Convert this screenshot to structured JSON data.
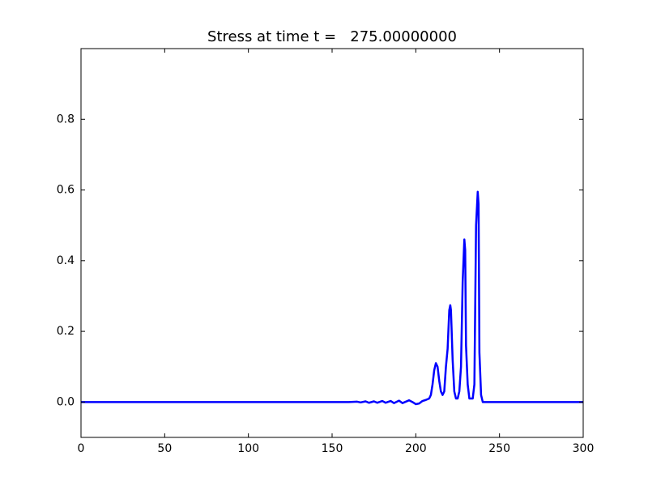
{
  "chart_data": {
    "type": "line",
    "title": "Stress at time t =   275.00000000",
    "x": [
      0,
      160,
      165,
      167,
      170,
      172,
      175,
      177,
      180,
      182,
      185,
      187,
      190,
      192,
      196,
      198,
      200,
      202,
      204,
      206,
      208,
      209,
      210,
      211,
      212,
      213,
      214,
      215,
      216,
      217,
      218,
      219,
      220,
      220.6,
      221,
      222,
      223,
      224,
      225,
      226,
      227,
      228,
      229,
      229.5,
      230,
      231,
      232,
      233,
      234,
      235,
      236,
      237,
      237.5,
      238,
      239,
      240,
      245,
      300
    ],
    "series": [
      {
        "color": "#0000ff",
        "values": [
          0,
          0,
          0.001,
          -0.001,
          0.002,
          -0.002,
          0.002,
          -0.002,
          0.003,
          -0.002,
          0.003,
          -0.003,
          0.004,
          -0.003,
          0.005,
          0,
          -0.006,
          -0.004,
          0.003,
          0.006,
          0.01,
          0.02,
          0.05,
          0.09,
          0.11,
          0.1,
          0.06,
          0.03,
          0.02,
          0.03,
          0.1,
          0.15,
          0.26,
          0.274,
          0.26,
          0.12,
          0.03,
          0.01,
          0.01,
          0.03,
          0.1,
          0.34,
          0.46,
          0.43,
          0.16,
          0.05,
          0.01,
          0.01,
          0.01,
          0.05,
          0.5,
          0.595,
          0.56,
          0.14,
          0.02,
          0,
          0,
          0
        ]
      }
    ],
    "xlim": [
      0,
      300
    ],
    "xticks": [
      0,
      50,
      100,
      150,
      200,
      250,
      300
    ],
    "ylim": [
      -0.1,
      1.0
    ],
    "yticks": [
      {
        "value": 0,
        "label": "0.0"
      },
      0.2,
      0.4,
      0.6,
      0.8
    ]
  }
}
